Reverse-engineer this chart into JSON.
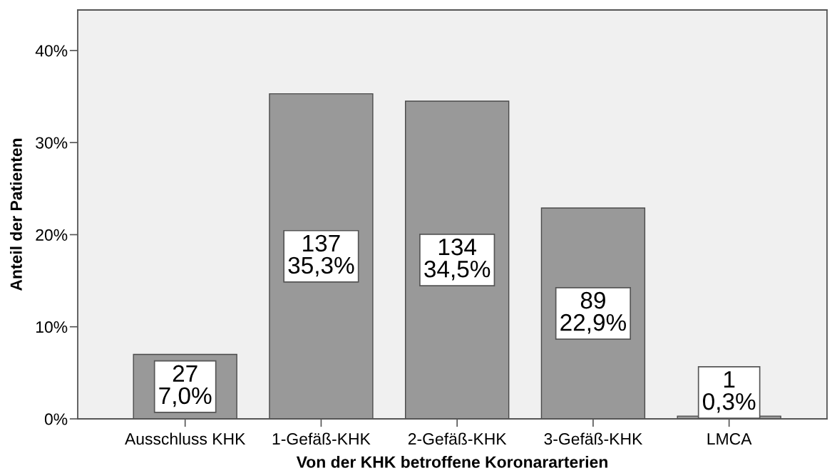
{
  "chart_data": {
    "type": "bar",
    "xlabel": "Von der KHK betroffene Koronararterien",
    "ylabel": "Anteil der Patienten",
    "categories": [
      "Ausschluss KHK",
      "1-Gefäß-KHK",
      "2-Gefäß-KHK",
      "3-Gefäß-KHK",
      "LMCA"
    ],
    "values": [
      7.0,
      35.3,
      34.5,
      22.9,
      0.3
    ],
    "color": "#999999",
    "value_labels": [
      "27\n7,0%",
      "137\n35,3%",
      "134\n34,5%",
      "89\n22,9%",
      "1\n0,3%"
    ],
    "ylim": [
      0,
      44.4
    ],
    "yticks": [
      {
        "value": 0,
        "label": "0%"
      },
      {
        "value": 10,
        "label": "10%"
      },
      {
        "value": 20,
        "label": "20%"
      },
      {
        "value": 30,
        "label": "30%"
      },
      {
        "value": 40,
        "label": "40%"
      }
    ],
    "grid": false,
    "legend": false
  }
}
